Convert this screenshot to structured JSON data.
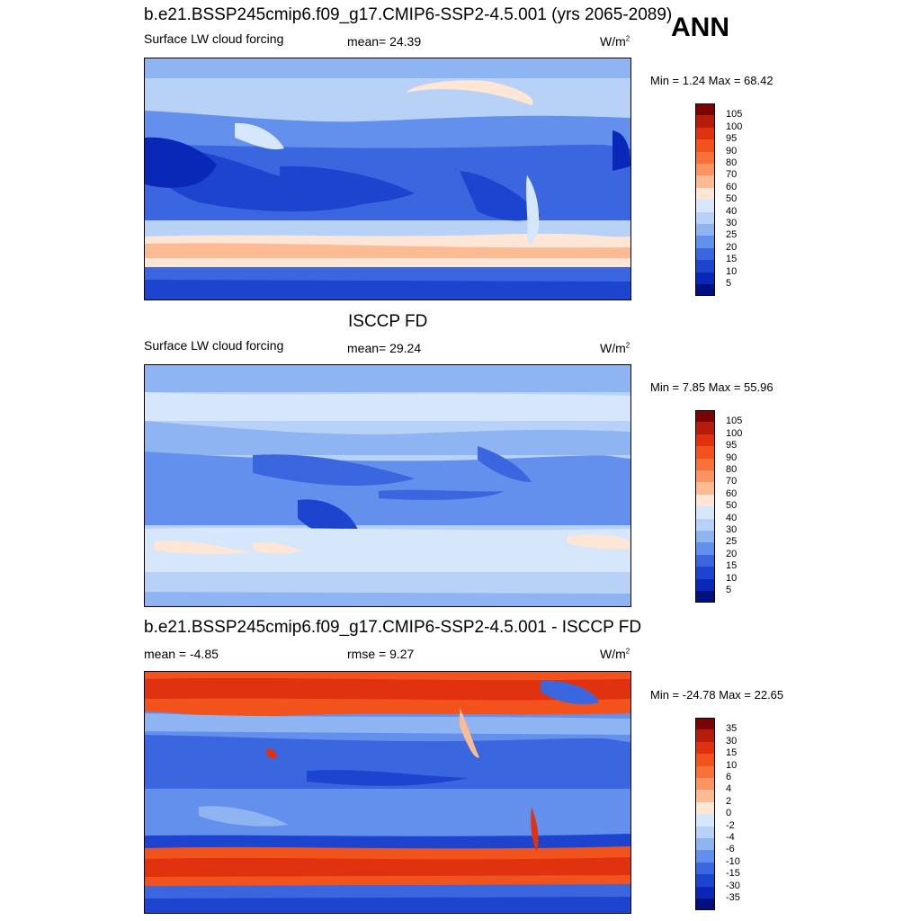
{
  "season": "ANN",
  "panels": [
    {
      "title": "b.e21.BSSP245cmip6.f09_g17.CMIP6-SSP2-4.5.001 (yrs 2065-2089)",
      "left_label": "Surface LW cloud forcing",
      "center_label": "mean=  24.39",
      "units_base": "W/m",
      "units_exp": "2",
      "minmax": "Min =   1.24 Max =  68.42",
      "colorbar_labels": [
        "105",
        "100",
        "95",
        "90",
        "80",
        "70",
        "60",
        "50",
        "40",
        "30",
        "25",
        "20",
        "15",
        "10",
        "5"
      ],
      "colorbar_colors": [
        "#7a0403",
        "#b51c0a",
        "#e0320f",
        "#f2531d",
        "#f8713a",
        "#fb9460",
        "#fcbb93",
        "#fde6d5",
        "#d6e7fb",
        "#b8d2f7",
        "#8fb4f2",
        "#6290ec",
        "#3a66df",
        "#1c44cf",
        "#0a28b8",
        "#00107f"
      ],
      "map_kind": "model"
    },
    {
      "title": "ISCCP FD",
      "left_label": "Surface LW cloud forcing",
      "center_label": "mean=  29.24",
      "units_base": "W/m",
      "units_exp": "2",
      "minmax": "Min =   7.85 Max =  55.96",
      "colorbar_labels": [
        "105",
        "100",
        "95",
        "90",
        "80",
        "70",
        "60",
        "50",
        "40",
        "30",
        "25",
        "20",
        "15",
        "10",
        "5"
      ],
      "colorbar_colors": [
        "#7a0403",
        "#b51c0a",
        "#e0320f",
        "#f2531d",
        "#f8713a",
        "#fb9460",
        "#fcbb93",
        "#fde6d5",
        "#d6e7fb",
        "#b8d2f7",
        "#8fb4f2",
        "#6290ec",
        "#3a66df",
        "#1c44cf",
        "#0a28b8",
        "#00107f"
      ],
      "map_kind": "obs"
    },
    {
      "title": "b.e21.BSSP245cmip6.f09_g17.CMIP6-SSP2-4.5.001 - ISCCP FD",
      "left_label": "mean =  -4.85",
      "center_label": "rmse =   9.27",
      "units_base": "W/m",
      "units_exp": "2",
      "minmax": "Min = -24.78 Max =  22.65",
      "colorbar_labels": [
        "35",
        "30",
        "15",
        "10",
        "6",
        "4",
        "2",
        "0",
        "-2",
        "-4",
        "-6",
        "-10",
        "-15",
        "-30",
        "-35"
      ],
      "colorbar_colors": [
        "#7a0403",
        "#b51c0a",
        "#e0320f",
        "#f2531d",
        "#f8713a",
        "#fb9460",
        "#fcbb93",
        "#fde6d5",
        "#d6e7fb",
        "#b8d2f7",
        "#8fb4f2",
        "#6290ec",
        "#3a66df",
        "#1c44cf",
        "#0a28b8",
        "#00107f"
      ],
      "map_kind": "diff"
    }
  ]
}
